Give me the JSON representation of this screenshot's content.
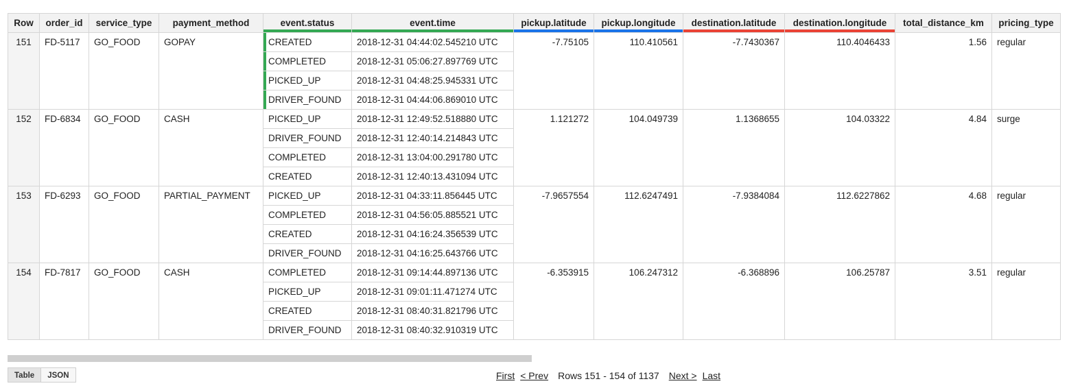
{
  "columns": {
    "row": "Row",
    "order_id": "order_id",
    "service_type": "service_type",
    "payment_method": "payment_method",
    "event_status": "event.status",
    "event_time": "event.time",
    "pickup_latitude": "pickup.latitude",
    "pickup_longitude": "pickup.longitude",
    "destination_latitude": "destination.latitude",
    "destination_longitude": "destination.longitude",
    "total_distance_km": "total_distance_km",
    "pricing_type": "pricing_type"
  },
  "header_underline_colors": {
    "event": "#34a853",
    "pickup": "#1a73e8",
    "destination": "#ea4335"
  },
  "records": [
    {
      "row": "151",
      "order_id": "FD-5117",
      "service_type": "GO_FOOD",
      "payment_method": "GOPAY",
      "events": [
        {
          "status": "CREATED",
          "time": "2018-12-31 04:44:02.545210 UTC"
        },
        {
          "status": "COMPLETED",
          "time": "2018-12-31 05:06:27.897769 UTC"
        },
        {
          "status": "PICKED_UP",
          "time": "2018-12-31 04:48:25.945331 UTC"
        },
        {
          "status": "DRIVER_FOUND",
          "time": "2018-12-31 04:44:06.869010 UTC"
        }
      ],
      "pickup_latitude": "-7.75105",
      "pickup_longitude": "110.410561",
      "destination_latitude": "-7.7430367",
      "destination_longitude": "110.4046433",
      "total_distance_km": "1.56",
      "pricing_type": "regular"
    },
    {
      "row": "152",
      "order_id": "FD-6834",
      "service_type": "GO_FOOD",
      "payment_method": "CASH",
      "events": [
        {
          "status": "PICKED_UP",
          "time": "2018-12-31 12:49:52.518880 UTC"
        },
        {
          "status": "DRIVER_FOUND",
          "time": "2018-12-31 12:40:14.214843 UTC"
        },
        {
          "status": "COMPLETED",
          "time": "2018-12-31 13:04:00.291780 UTC"
        },
        {
          "status": "CREATED",
          "time": "2018-12-31 12:40:13.431094 UTC"
        }
      ],
      "pickup_latitude": "1.121272",
      "pickup_longitude": "104.049739",
      "destination_latitude": "1.1368655",
      "destination_longitude": "104.03322",
      "total_distance_km": "4.84",
      "pricing_type": "surge"
    },
    {
      "row": "153",
      "order_id": "FD-6293",
      "service_type": "GO_FOOD",
      "payment_method": "PARTIAL_PAYMENT",
      "events": [
        {
          "status": "PICKED_UP",
          "time": "2018-12-31 04:33:11.856445 UTC"
        },
        {
          "status": "COMPLETED",
          "time": "2018-12-31 04:56:05.885521 UTC"
        },
        {
          "status": "CREATED",
          "time": "2018-12-31 04:16:24.356539 UTC"
        },
        {
          "status": "DRIVER_FOUND",
          "time": "2018-12-31 04:16:25.643766 UTC"
        }
      ],
      "pickup_latitude": "-7.9657554",
      "pickup_longitude": "112.6247491",
      "destination_latitude": "-7.9384084",
      "destination_longitude": "112.6227862",
      "total_distance_km": "4.68",
      "pricing_type": "regular"
    },
    {
      "row": "154",
      "order_id": "FD-7817",
      "service_type": "GO_FOOD",
      "payment_method": "CASH",
      "events": [
        {
          "status": "COMPLETED",
          "time": "2018-12-31 09:14:44.897136 UTC"
        },
        {
          "status": "PICKED_UP",
          "time": "2018-12-31 09:01:11.471274 UTC"
        },
        {
          "status": "CREATED",
          "time": "2018-12-31 08:40:31.821796 UTC"
        },
        {
          "status": "DRIVER_FOUND",
          "time": "2018-12-31 08:40:32.910319 UTC"
        }
      ],
      "pickup_latitude": "-6.353915",
      "pickup_longitude": "106.247312",
      "destination_latitude": "-6.368896",
      "destination_longitude": "106.25787",
      "total_distance_km": "3.51",
      "pricing_type": "regular"
    }
  ],
  "view_toggle": {
    "table_label": "Table",
    "json_label": "JSON"
  },
  "pagination": {
    "first": "First",
    "prev": "< Prev",
    "rows_info": "Rows 151 - 154 of 1137",
    "next": "Next >",
    "last": "Last"
  }
}
